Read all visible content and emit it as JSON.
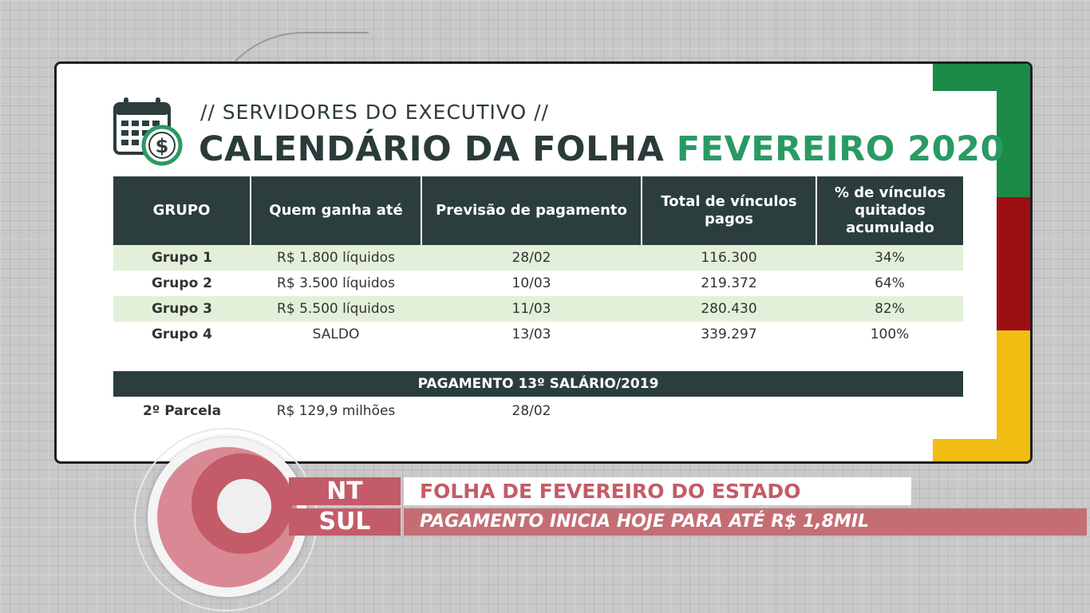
{
  "card": {
    "kicker": "// SERVIDORES DO EXECUTIVO //",
    "title_main": "CALENDÁRIO DA FOLHA",
    "title_accent": "FEVEREIRO 2020",
    "colors": {
      "dark": "#2b3e3d",
      "accent": "#2a9a64",
      "row_alt": "#e3f0d9"
    }
  },
  "table": {
    "headers": [
      "GRUPO",
      "Quem ganha até",
      "Previsão de pagamento",
      "Total de vínculos pagos",
      "% de vínculos quitados acumulado"
    ],
    "rows": [
      [
        "Grupo 1",
        "R$ 1.800 líquidos",
        "28/02",
        "116.300",
        "34%"
      ],
      [
        "Grupo 2",
        "R$ 3.500 líquidos",
        "10/03",
        "219.372",
        "64%"
      ],
      [
        "Grupo 3",
        "R$ 5.500 líquidos",
        "11/03",
        "280.430",
        "82%"
      ],
      [
        "Grupo 4",
        "SALDO",
        "13/03",
        "339.297",
        "100%"
      ]
    ]
  },
  "banner": {
    "label": "PAGAMENTO 13º SALÁRIO/2019"
  },
  "extra_row": [
    "2º Parcela",
    "R$ 129,9 milhões",
    "28/02"
  ],
  "lower_third": {
    "logo_top": "NT",
    "logo_bottom": "SUL",
    "headline": "FOLHA DE FEVEREIRO DO ESTADO",
    "subline": "PAGAMENTO INICIA HOJE PARA ATÉ R$ 1,8MIL",
    "colors": {
      "brand": "#c45b68"
    }
  },
  "icons": {
    "calendar": "calendar-money-icon"
  }
}
